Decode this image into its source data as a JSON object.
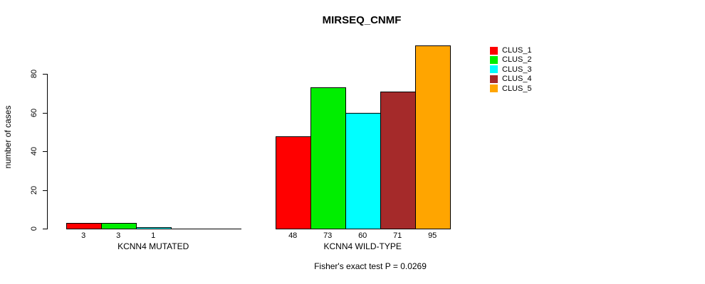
{
  "chart_data": {
    "type": "bar",
    "title": "MIRSEQ_CNMF",
    "ylabel": "number of cases",
    "xlabel": "",
    "ylim": [
      0,
      97
    ],
    "y_ticks": [
      0,
      20,
      40,
      60,
      80
    ],
    "grid": false,
    "legend_position": "right-outside",
    "legend": [
      {
        "label": "CLUS_1",
        "color": "#FF0000"
      },
      {
        "label": "CLUS_2",
        "color": "#00EE00"
      },
      {
        "label": "CLUS_3",
        "color": "#00FFFF"
      },
      {
        "label": "CLUS_4",
        "color": "#A52A2A"
      },
      {
        "label": "CLUS_5",
        "color": "#FFA500"
      }
    ],
    "groups": [
      {
        "label": "KCNN4 MUTATED",
        "series": [
          "CLUS_1",
          "CLUS_2",
          "CLUS_3",
          "CLUS_4",
          "CLUS_5"
        ],
        "values": [
          3,
          3,
          1,
          0,
          0
        ],
        "bar_labels": [
          "3",
          "3",
          "1",
          "",
          ""
        ]
      },
      {
        "label": "KCNN4 WILD-TYPE",
        "series": [
          "CLUS_1",
          "CLUS_2",
          "CLUS_3",
          "CLUS_4",
          "CLUS_5"
        ],
        "values": [
          48,
          73,
          60,
          71,
          95
        ],
        "bar_labels": [
          "48",
          "73",
          "60",
          "71",
          "95"
        ]
      }
    ],
    "footer": "Fisher's exact test P = 0.0269"
  }
}
